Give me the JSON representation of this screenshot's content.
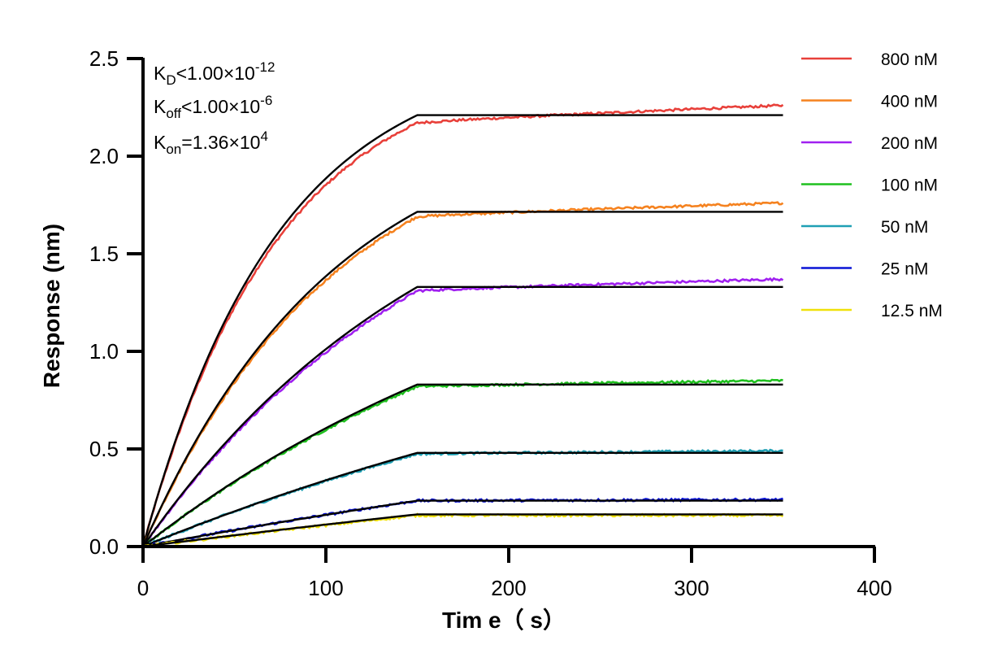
{
  "chart_data": {
    "type": "line",
    "xlabel": "Tim e（ s）",
    "ylabel": "Response (nm)",
    "xlim": [
      0,
      400
    ],
    "ylim": [
      0,
      2.5
    ],
    "xticks": [
      "0",
      "100",
      "200",
      "300",
      "400"
    ],
    "yticks": [
      "0.0",
      "0.5",
      "1.0",
      "1.5",
      "2.0",
      "2.5"
    ],
    "grid": false,
    "legend_position": "right",
    "association_end": 150,
    "end_time": 350,
    "annotations": {
      "kd": {
        "base": "K",
        "sub": "D",
        "rel": "<",
        "mantissa": "1.00×10",
        "exp": "-12"
      },
      "koff": {
        "base": "K",
        "sub": "off",
        "rel": "<",
        "mantissa": "1.00×10",
        "exp": "-6"
      },
      "kon": {
        "base": "K",
        "sub": "on",
        "rel": "=",
        "mantissa": "1.36×10",
        "exp": "4"
      }
    },
    "series": [
      {
        "name": "800 nM",
        "color": "#e8403a",
        "plateau": 2.17,
        "final": 2.26,
        "fit_plateau": 2.21
      },
      {
        "name": "400 nM",
        "color": "#f5821f",
        "plateau": 1.69,
        "final": 1.76,
        "fit_plateau": 1.715
      },
      {
        "name": "200 nM",
        "color": "#a020f0",
        "plateau": 1.31,
        "final": 1.37,
        "fit_plateau": 1.33
      },
      {
        "name": "100 nM",
        "color": "#1fc01f",
        "plateau": 0.82,
        "final": 0.85,
        "fit_plateau": 0.83
      },
      {
        "name": "50 nM",
        "color": "#1fa0b4",
        "plateau": 0.475,
        "final": 0.49,
        "fit_plateau": 0.48
      },
      {
        "name": "25 nM",
        "color": "#0a14d6",
        "plateau": 0.235,
        "final": 0.24,
        "fit_plateau": 0.235
      },
      {
        "name": "12.5 nM",
        "color": "#f0e10a",
        "plateau": 0.16,
        "final": 0.16,
        "fit_plateau": 0.165
      }
    ],
    "fit_color": "#000000"
  }
}
